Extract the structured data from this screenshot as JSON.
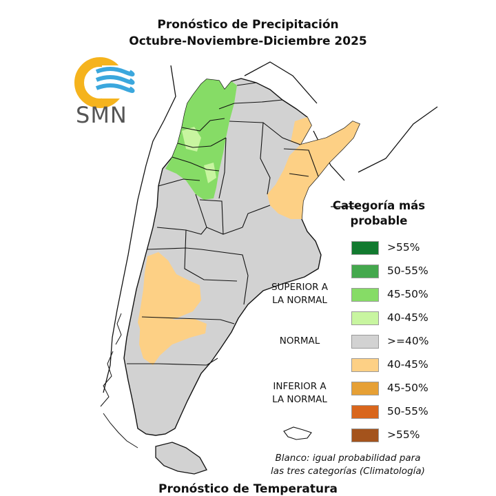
{
  "title": "Pronóstico de Precipitación",
  "subtitle": "Octubre-Noviembre-Diciembre 2025",
  "logo": {
    "text": "SMN"
  },
  "legend": {
    "title_line1": "Categoría más",
    "title_line2": "probable",
    "items": [
      {
        "label": ">55%",
        "color": "#127a2f"
      },
      {
        "label": "50-55%",
        "color": "#44a84d"
      },
      {
        "label": "45-50%",
        "color": "#86dc66"
      },
      {
        "label": "40-45%",
        "color": "#c8f5a0"
      },
      {
        "label": ">=40%",
        "color": "#d2d2d2"
      },
      {
        "label": "40-45%",
        "color": "#fdd085"
      },
      {
        "label": "45-50%",
        "color": "#e6a035"
      },
      {
        "label": "50-55%",
        "color": "#d9661c"
      },
      {
        "label": ">55%",
        "color": "#a4531c"
      }
    ],
    "groups": {
      "superior_line1": "SUPERIOR A",
      "superior_line2": "LA NORMAL",
      "normal": "NORMAL",
      "inferior_line1": "INFERIOR A",
      "inferior_line2": "LA NORMAL"
    }
  },
  "note_line1": "Blanco: igual probabilidad para",
  "note_line2": "las tres categorías (Climatología)",
  "next_title_partial": "Pronóstico de Temperatura"
}
